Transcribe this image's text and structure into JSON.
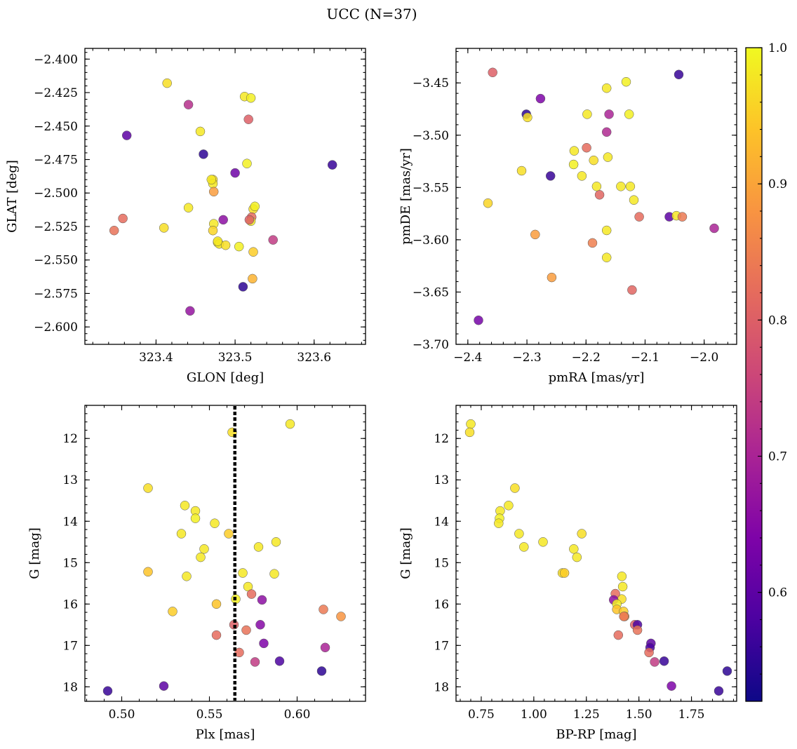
{
  "title": "UCC (N=37)",
  "colormap": {
    "name": "plasma",
    "range": [
      0.52,
      1.0
    ],
    "ticks": [
      0.6,
      0.7,
      0.8,
      0.9,
      1.0
    ],
    "tick_labels": [
      "0.6",
      "0.7",
      "0.8",
      "0.9",
      "1.0"
    ]
  },
  "chart_data": [
    {
      "type": "scatter",
      "xlabel": "GLON [deg]",
      "ylabel": "GLAT [deg]",
      "xlim": [
        323.31,
        323.665
      ],
      "ylim": [
        -2.613,
        -2.392
      ],
      "xticks": [
        323.4,
        323.5,
        323.6
      ],
      "xtick_labels": [
        "323.4",
        "323.5",
        "323.6"
      ],
      "yticks": [
        -2.6,
        -2.575,
        -2.55,
        -2.525,
        -2.5,
        -2.475,
        -2.45,
        -2.425,
        -2.4
      ],
      "ytick_labels": [
        "−2.600",
        "−2.575",
        "−2.550",
        "−2.525",
        "−2.500",
        "−2.475",
        "−2.450",
        "−2.425",
        "−2.400"
      ],
      "x": [
        323.414,
        323.512,
        323.52,
        323.441,
        323.517,
        323.363,
        323.456,
        323.46,
        323.623,
        323.515,
        323.5,
        323.472,
        323.472,
        323.473,
        323.523,
        323.521,
        323.52,
        323.441,
        323.358,
        323.485,
        323.518,
        323.473,
        323.41,
        323.347,
        323.472,
        323.478,
        323.48,
        323.488,
        323.505,
        323.548,
        323.523,
        323.522,
        323.51,
        323.443,
        323.47,
        323.525,
        323.478
      ],
      "y": [
        -2.418,
        -2.428,
        -2.429,
        -2.434,
        -2.445,
        -2.457,
        -2.454,
        -2.471,
        -2.479,
        -2.478,
        -2.485,
        -2.49,
        -2.493,
        -2.499,
        -2.512,
        -2.518,
        -2.521,
        -2.511,
        -2.519,
        -2.52,
        -2.52,
        -2.523,
        -2.526,
        -2.528,
        -2.528,
        -2.537,
        -2.538,
        -2.539,
        -2.54,
        -2.535,
        -2.544,
        -2.564,
        -2.57,
        -2.588,
        -2.49,
        -2.51,
        -2.536
      ],
      "c": [
        0.97,
        0.98,
        0.99,
        0.72,
        0.8,
        0.6,
        0.98,
        0.55,
        0.56,
        0.99,
        0.62,
        0.97,
        0.98,
        0.89,
        0.97,
        0.82,
        0.98,
        0.98,
        0.82,
        0.66,
        0.8,
        0.98,
        0.97,
        0.83,
        0.96,
        0.98,
        0.98,
        0.97,
        0.99,
        0.74,
        0.95,
        0.92,
        0.55,
        0.67,
        0.98,
        0.99,
        0.98
      ]
    },
    {
      "type": "scatter",
      "xlabel": "pmRA [mas/yr]",
      "ylabel": "pmDE [mas/yr]",
      "xlim": [
        -2.42,
        -1.945
      ],
      "ylim": [
        -3.7,
        -3.417
      ],
      "xticks": [
        -2.4,
        -2.3,
        -2.2,
        -2.1,
        -2.0
      ],
      "xtick_labels": [
        "−2.4",
        "−2.3",
        "−2.2",
        "−2.1",
        "−2.0"
      ],
      "yticks": [
        -3.7,
        -3.65,
        -3.6,
        -3.55,
        -3.5,
        -3.45
      ],
      "ytick_labels": [
        "−3.70",
        "−3.65",
        "−3.60",
        "−3.55",
        "−3.50",
        "−3.45"
      ],
      "x": [
        -2.358,
        -2.043,
        -2.132,
        -2.165,
        -2.277,
        -2.301,
        -2.299,
        -2.198,
        -2.161,
        -2.127,
        -2.165,
        -2.199,
        -2.22,
        -2.163,
        -2.221,
        -2.187,
        -2.207,
        -2.309,
        -2.26,
        -2.177,
        -2.182,
        -2.141,
        -2.125,
        -2.366,
        -2.119,
        -2.11,
        -2.059,
        -2.047,
        -2.037,
        -1.983,
        -2.165,
        -2.286,
        -2.189,
        -2.165,
        -2.258,
        -2.122,
        -2.382
      ],
      "y": [
        -3.44,
        -3.442,
        -3.449,
        -3.455,
        -3.465,
        -3.48,
        -3.483,
        -3.48,
        -3.48,
        -3.48,
        -3.497,
        -3.512,
        -3.515,
        -3.521,
        -3.528,
        -3.524,
        -3.539,
        -3.534,
        -3.539,
        -3.557,
        -3.549,
        -3.549,
        -3.549,
        -3.565,
        -3.562,
        -3.578,
        -3.578,
        -3.577,
        -3.578,
        -3.589,
        -3.591,
        -3.595,
        -3.603,
        -3.617,
        -3.636,
        -3.648,
        -3.677
      ],
      "c": [
        0.8,
        0.56,
        0.99,
        0.98,
        0.64,
        0.55,
        0.97,
        0.98,
        0.7,
        0.99,
        0.71,
        0.82,
        0.98,
        0.98,
        0.99,
        0.97,
        0.98,
        0.97,
        0.56,
        0.81,
        0.98,
        0.98,
        0.98,
        0.96,
        0.98,
        0.82,
        0.6,
        0.98,
        0.84,
        0.7,
        0.98,
        0.89,
        0.85,
        0.98,
        0.89,
        0.81,
        0.63
      ]
    },
    {
      "type": "scatter",
      "xlabel": "Plx [mas]",
      "ylabel": "G [mag]",
      "xlim": [
        0.479,
        0.639
      ],
      "ylim": [
        18.35,
        11.2
      ],
      "y_inverted": true,
      "vline": 0.5645,
      "xticks": [
        0.5,
        0.55,
        0.6
      ],
      "xtick_labels": [
        "0.50",
        "0.55",
        "0.60"
      ],
      "yticks": [
        12,
        13,
        14,
        15,
        16,
        17,
        18
      ],
      "ytick_labels": [
        "12",
        "13",
        "14",
        "15",
        "16",
        "17",
        "18"
      ],
      "x": [
        0.596,
        0.563,
        0.515,
        0.536,
        0.542,
        0.542,
        0.553,
        0.561,
        0.534,
        0.588,
        0.578,
        0.547,
        0.545,
        0.537,
        0.515,
        0.569,
        0.587,
        0.572,
        0.574,
        0.58,
        0.565,
        0.554,
        0.615,
        0.529,
        0.625,
        0.564,
        0.579,
        0.571,
        0.554,
        0.581,
        0.616,
        0.567,
        0.576,
        0.59,
        0.614,
        0.524,
        0.492
      ],
      "y": [
        11.65,
        11.85,
        13.2,
        13.62,
        13.75,
        13.93,
        14.05,
        14.3,
        14.3,
        14.5,
        14.62,
        14.67,
        14.87,
        15.33,
        15.22,
        15.25,
        15.27,
        15.58,
        15.76,
        15.9,
        15.88,
        16.0,
        16.13,
        16.18,
        16.3,
        16.5,
        16.5,
        16.63,
        16.75,
        16.95,
        17.05,
        17.17,
        17.4,
        17.38,
        17.62,
        17.98,
        18.1
      ],
      "c": [
        0.98,
        0.97,
        0.97,
        0.98,
        0.98,
        0.99,
        0.98,
        0.95,
        0.98,
        0.98,
        0.98,
        0.98,
        0.98,
        0.98,
        0.94,
        0.98,
        0.98,
        0.98,
        0.82,
        0.66,
        0.99,
        0.94,
        0.84,
        0.95,
        0.88,
        0.8,
        0.65,
        0.83,
        0.82,
        0.64,
        0.7,
        0.82,
        0.74,
        0.58,
        0.55,
        0.6,
        0.56
      ]
    },
    {
      "type": "scatter",
      "xlabel": "BP-RP [mag]",
      "ylabel": "G [mag]",
      "xlim": [
        0.63,
        1.965
      ],
      "ylim": [
        18.35,
        11.2
      ],
      "y_inverted": true,
      "xticks": [
        0.75,
        1.0,
        1.25,
        1.5,
        1.75
      ],
      "xtick_labels": [
        "0.75",
        "1.00",
        "1.25",
        "1.50",
        "1.75"
      ],
      "yticks": [
        12,
        13,
        14,
        15,
        16,
        17,
        18
      ],
      "ytick_labels": [
        "12",
        "13",
        "14",
        "15",
        "16",
        "17",
        "18"
      ],
      "x": [
        0.7,
        0.695,
        0.91,
        0.88,
        0.84,
        0.837,
        0.833,
        0.93,
        1.228,
        1.044,
        0.953,
        1.19,
        1.205,
        1.136,
        1.146,
        1.419,
        1.423,
        1.418,
        1.388,
        1.38,
        1.395,
        1.395,
        1.427,
        1.432,
        1.428,
        1.48,
        1.493,
        1.493,
        1.402,
        1.557,
        1.553,
        1.548,
        1.575,
        1.62,
        1.92,
        1.655,
        1.88
      ],
      "y": [
        11.65,
        11.85,
        13.2,
        13.62,
        13.75,
        13.93,
        14.05,
        14.3,
        14.3,
        14.5,
        14.62,
        14.67,
        14.87,
        15.25,
        15.25,
        15.33,
        15.58,
        15.88,
        15.75,
        15.9,
        16.0,
        16.13,
        16.18,
        16.3,
        16.3,
        16.5,
        16.5,
        16.63,
        16.75,
        16.95,
        17.05,
        17.17,
        17.4,
        17.38,
        17.62,
        17.98,
        18.1
      ],
      "c": [
        0.98,
        0.97,
        0.97,
        0.98,
        0.98,
        0.99,
        0.98,
        0.98,
        0.97,
        0.98,
        0.98,
        0.98,
        0.98,
        0.97,
        0.95,
        0.98,
        0.98,
        0.97,
        0.82,
        0.66,
        0.99,
        0.94,
        0.95,
        0.88,
        0.84,
        0.8,
        0.58,
        0.83,
        0.82,
        0.6,
        0.58,
        0.82,
        0.74,
        0.56,
        0.55,
        0.64,
        0.56
      ]
    }
  ]
}
